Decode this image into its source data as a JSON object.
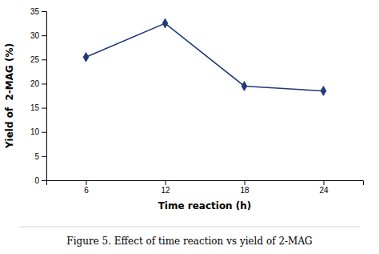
{
  "chart_data": {
    "type": "line",
    "title": "Figure 5. Effect of time reaction vs yield of 2-MAG",
    "xlabel": "Time reaction (h)",
    "ylabel": "Yield of  2-MAG (%)",
    "x": [
      6,
      12,
      18,
      24
    ],
    "values": [
      25.5,
      32.5,
      19.5,
      18.5
    ],
    "color": "#1F3A7A",
    "marker": "diamond",
    "xlim": [
      3,
      27
    ],
    "ylim": [
      0,
      35
    ],
    "xticks": [
      6,
      12,
      18,
      24
    ],
    "yticks": [
      0,
      5,
      10,
      15,
      20,
      25,
      30,
      35
    ],
    "grid": false
  }
}
